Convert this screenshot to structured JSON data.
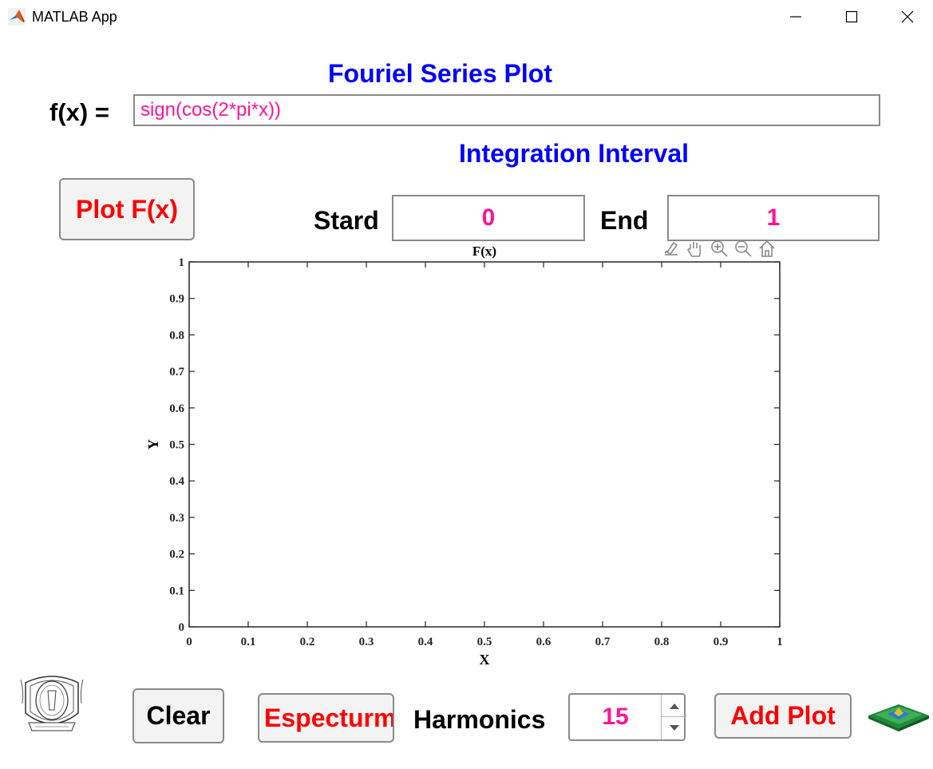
{
  "window": {
    "title": "MATLAB App",
    "icon": "matlab-logo-icon",
    "controls": [
      "minimize-icon",
      "maximize-icon",
      "close-icon"
    ]
  },
  "header": {
    "title": "Fouriel Series Plot",
    "fx_label": "f(x) =",
    "fx_value": "sign(cos(2*pi*x))",
    "interval_title": "Integration Interval"
  },
  "interval": {
    "start_label": "Stard",
    "start_value": "0",
    "end_label": "End",
    "end_value": "1"
  },
  "buttons": {
    "plot": "Plot F(x)",
    "clear": "Clear",
    "spectrum": "Especturm",
    "add_plot": "Add Plot"
  },
  "harmonics": {
    "label": "Harmonics",
    "value": "15"
  },
  "axes_toolbar": [
    "brush-icon",
    "pan-hand-icon",
    "zoom-in-icon",
    "zoom-out-icon",
    "home-icon"
  ],
  "chart_data": {
    "type": "line",
    "title": "F(x)",
    "xlabel": "X",
    "ylabel": "Y",
    "xlim": [
      0,
      1
    ],
    "ylim": [
      0,
      1
    ],
    "xticks": [
      "0",
      "0.1",
      "0.2",
      "0.3",
      "0.4",
      "0.5",
      "0.6",
      "0.7",
      "0.8",
      "0.9",
      "1"
    ],
    "yticks": [
      "0",
      "0.1",
      "0.2",
      "0.3",
      "0.4",
      "0.5",
      "0.6",
      "0.7",
      "0.8",
      "0.9",
      "1"
    ],
    "series": [],
    "grid": false
  },
  "colors": {
    "heading_blue": "#0000ff",
    "button_red": "#ff0000",
    "value_pink": "#ff1493"
  }
}
